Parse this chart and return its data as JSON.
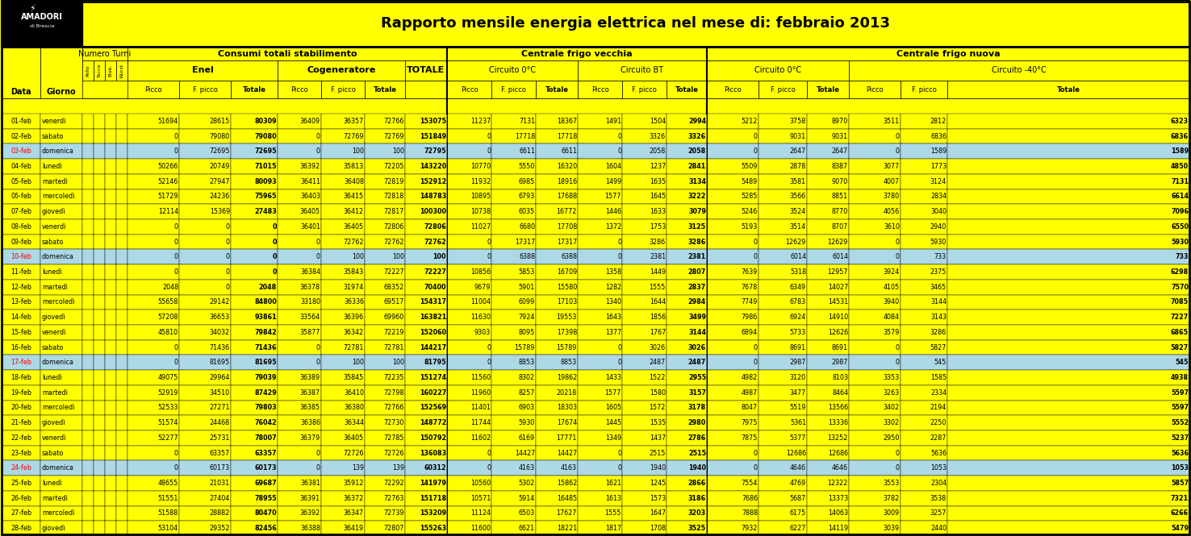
{
  "title": "Rapporto mensile energia elettrica nel mese di: febbraio 2013",
  "rows": [
    [
      "01-feb",
      "venerdì",
      "",
      "",
      "",
      "",
      "51694",
      "28615",
      "80309",
      "36409",
      "36357",
      "72766",
      "153075",
      "11237",
      "7131",
      "18367",
      "1491",
      "1504",
      "2994",
      "5212",
      "3758",
      "8970",
      "3511",
      "2812",
      "6323"
    ],
    [
      "02-feb",
      "sabato",
      "",
      "",
      "",
      "",
      "0",
      "79080",
      "79080",
      "0",
      "72769",
      "72769",
      "151849",
      "0",
      "17718",
      "17718",
      "0",
      "3326",
      "3326",
      "0",
      "9031",
      "9031",
      "0",
      "6836",
      "6836"
    ],
    [
      "03-feb",
      "domenica",
      "",
      "",
      "",
      "",
      "0",
      "72695",
      "72695",
      "0",
      "100",
      "100",
      "72795",
      "0",
      "6611",
      "6611",
      "0",
      "2058",
      "2058",
      "0",
      "2647",
      "2647",
      "0",
      "1589",
      "1589"
    ],
    [
      "04-feb",
      "lunedì",
      "",
      "",
      "",
      "",
      "50266",
      "20749",
      "71015",
      "36392",
      "35813",
      "72205",
      "143220",
      "10770",
      "5550",
      "16320",
      "1604",
      "1237",
      "2841",
      "5509",
      "2878",
      "8387",
      "3077",
      "1773",
      "4850"
    ],
    [
      "05-feb",
      "martedì",
      "",
      "",
      "",
      "",
      "52146",
      "27947",
      "80093",
      "36411",
      "36408",
      "72819",
      "152912",
      "11932",
      "6985",
      "18916",
      "1499",
      "1635",
      "3134",
      "5489",
      "3581",
      "9070",
      "4007",
      "3124",
      "7131"
    ],
    [
      "06-feb",
      "mercoledì",
      "",
      "",
      "",
      "",
      "51729",
      "24236",
      "75965",
      "36403",
      "36415",
      "72818",
      "148783",
      "10895",
      "6793",
      "17688",
      "1577",
      "1645",
      "3222",
      "5285",
      "3566",
      "8851",
      "3780",
      "2834",
      "6614"
    ],
    [
      "07-feb",
      "giovedì",
      "",
      "",
      "",
      "",
      "12114",
      "15369",
      "27483",
      "36405",
      "36412",
      "72817",
      "100300",
      "10738",
      "6035",
      "16772",
      "1446",
      "1633",
      "3079",
      "5246",
      "3524",
      "8770",
      "4056",
      "3040",
      "7096"
    ],
    [
      "08-feb",
      "venerdì",
      "",
      "",
      "",
      "",
      "0",
      "0",
      "0",
      "36401",
      "36405",
      "72806",
      "72806",
      "11027",
      "6680",
      "17708",
      "1372",
      "1753",
      "3125",
      "5193",
      "3514",
      "8707",
      "3610",
      "2940",
      "6550"
    ],
    [
      "09-feb",
      "sabato",
      "",
      "",
      "",
      "",
      "0",
      "0",
      "0",
      "0",
      "72762",
      "72762",
      "72762",
      "0",
      "17317",
      "17317",
      "0",
      "3286",
      "3286",
      "0",
      "12629",
      "12629",
      "0",
      "5930",
      "5930"
    ],
    [
      "10-feb",
      "domenica",
      "",
      "",
      "",
      "",
      "0",
      "0",
      "0",
      "0",
      "100",
      "100",
      "100",
      "0",
      "6388",
      "6388",
      "0",
      "2381",
      "2381",
      "0",
      "6014",
      "6014",
      "0",
      "733",
      "733"
    ],
    [
      "11-feb",
      "lunedì",
      "",
      "",
      "",
      "",
      "0",
      "0",
      "0",
      "36384",
      "35843",
      "72227",
      "72227",
      "10856",
      "5853",
      "16709",
      "1358",
      "1449",
      "2807",
      "7639",
      "5318",
      "12957",
      "3924",
      "2375",
      "6298"
    ],
    [
      "12-feb",
      "martedì",
      "",
      "",
      "",
      "",
      "2048",
      "0",
      "2048",
      "36378",
      "31974",
      "68352",
      "70400",
      "9679",
      "5901",
      "15580",
      "1282",
      "1555",
      "2837",
      "7678",
      "6349",
      "14027",
      "4105",
      "3465",
      "7570"
    ],
    [
      "13-feb",
      "mercoledì",
      "",
      "",
      "",
      "",
      "55658",
      "29142",
      "84800",
      "33180",
      "36336",
      "69517",
      "154317",
      "11004",
      "6099",
      "17103",
      "1340",
      "1644",
      "2984",
      "7749",
      "6783",
      "14531",
      "3940",
      "3144",
      "7085"
    ],
    [
      "14-feb",
      "giovedì",
      "",
      "",
      "",
      "",
      "57208",
      "36653",
      "93861",
      "33564",
      "36396",
      "69960",
      "163821",
      "11630",
      "7924",
      "19553",
      "1643",
      "1856",
      "3499",
      "7986",
      "6924",
      "14910",
      "4084",
      "3143",
      "7227"
    ],
    [
      "15-feb",
      "venerdì",
      "",
      "",
      "",
      "",
      "45810",
      "34032",
      "79842",
      "35877",
      "36342",
      "72219",
      "152060",
      "9303",
      "8095",
      "17398",
      "1377",
      "1767",
      "3144",
      "6894",
      "5733",
      "12626",
      "3579",
      "3286",
      "6865"
    ],
    [
      "16-feb",
      "sabato",
      "",
      "",
      "",
      "",
      "0",
      "71436",
      "71436",
      "0",
      "72781",
      "72781",
      "144217",
      "0",
      "15789",
      "15789",
      "0",
      "3026",
      "3026",
      "0",
      "8691",
      "8691",
      "0",
      "5827",
      "5827"
    ],
    [
      "17-feb",
      "domenica",
      "",
      "",
      "",
      "",
      "0",
      "81695",
      "81695",
      "0",
      "100",
      "100",
      "81795",
      "0",
      "8853",
      "8853",
      "0",
      "2487",
      "2487",
      "0",
      "2987",
      "2987",
      "0",
      "545",
      "545"
    ],
    [
      "18-feb",
      "lunedì",
      "",
      "",
      "",
      "",
      "49075",
      "29964",
      "79039",
      "36389",
      "35845",
      "72235",
      "151274",
      "11560",
      "8302",
      "19862",
      "1433",
      "1522",
      "2955",
      "4982",
      "3120",
      "8103",
      "3353",
      "1585",
      "4938"
    ],
    [
      "19-feb",
      "martedì",
      "",
      "",
      "",
      "",
      "52919",
      "34510",
      "87429",
      "36387",
      "36410",
      "72798",
      "160227",
      "11960",
      "8257",
      "20218",
      "1577",
      "1580",
      "3157",
      "4987",
      "3477",
      "8464",
      "3263",
      "2334",
      "5597"
    ],
    [
      "20-feb",
      "mercoledì",
      "",
      "",
      "",
      "",
      "52533",
      "27271",
      "79803",
      "36385",
      "36380",
      "72766",
      "152569",
      "11401",
      "6903",
      "18303",
      "1605",
      "1572",
      "3178",
      "8047",
      "5519",
      "13566",
      "3402",
      "2194",
      "5597"
    ],
    [
      "21-feb",
      "giovedì",
      "",
      "",
      "",
      "",
      "51574",
      "24468",
      "76042",
      "36386",
      "36344",
      "72730",
      "148772",
      "11744",
      "5930",
      "17674",
      "1445",
      "1535",
      "2980",
      "7975",
      "5361",
      "13336",
      "3302",
      "2250",
      "5552"
    ],
    [
      "22-feb",
      "venerdì",
      "",
      "",
      "",
      "",
      "52277",
      "25731",
      "78007",
      "36379",
      "36405",
      "72785",
      "150792",
      "11602",
      "6169",
      "17771",
      "1349",
      "1437",
      "2786",
      "7875",
      "5377",
      "13252",
      "2950",
      "2287",
      "5237"
    ],
    [
      "23-feb",
      "sabato",
      "",
      "",
      "",
      "",
      "0",
      "63357",
      "63357",
      "0",
      "72726",
      "72726",
      "136083",
      "0",
      "14427",
      "14427",
      "0",
      "2515",
      "2515",
      "0",
      "12686",
      "12686",
      "0",
      "5636",
      "5636"
    ],
    [
      "24-feb",
      "domenica",
      "",
      "",
      "",
      "",
      "0",
      "60173",
      "60173",
      "0",
      "139",
      "139",
      "60312",
      "0",
      "4163",
      "4163",
      "0",
      "1940",
      "1940",
      "0",
      "4646",
      "4646",
      "0",
      "1053",
      "1053"
    ],
    [
      "25-feb",
      "lunedì",
      "",
      "",
      "",
      "",
      "48655",
      "21031",
      "69687",
      "36381",
      "35912",
      "72292",
      "141979",
      "10560",
      "5302",
      "15862",
      "1621",
      "1245",
      "2866",
      "7554",
      "4769",
      "12322",
      "3553",
      "2304",
      "5857"
    ],
    [
      "26-feb",
      "martedì",
      "",
      "",
      "",
      "",
      "51551",
      "27404",
      "78955",
      "36391",
      "36372",
      "72763",
      "151718",
      "10571",
      "5914",
      "16485",
      "1613",
      "1573",
      "3186",
      "7686",
      "5687",
      "13373",
      "3782",
      "3538",
      "7321"
    ],
    [
      "27-feb",
      "mercoledì",
      "",
      "",
      "",
      "",
      "51588",
      "28882",
      "80470",
      "36392",
      "36347",
      "72739",
      "153209",
      "11124",
      "6503",
      "17627",
      "1555",
      "1647",
      "3203",
      "7888",
      "6175",
      "14063",
      "3009",
      "3257",
      "6266"
    ],
    [
      "28-feb",
      "giovedì",
      "",
      "",
      "",
      "",
      "53104",
      "29352",
      "82456",
      "36388",
      "36419",
      "72807",
      "155263",
      "11600",
      "6621",
      "18221",
      "1817",
      "1708",
      "3525",
      "7932",
      "6227",
      "14119",
      "3039",
      "2440",
      "5479"
    ]
  ],
  "sunday_rows": [
    2,
    9,
    16,
    23
  ],
  "nt_labels": [
    "Pollo",
    "Tacce",
    "Elab.",
    "Wurst"
  ],
  "yellow": "#FFFF00",
  "light_blue": "#ADD8E6",
  "white": "#FFFFFF"
}
